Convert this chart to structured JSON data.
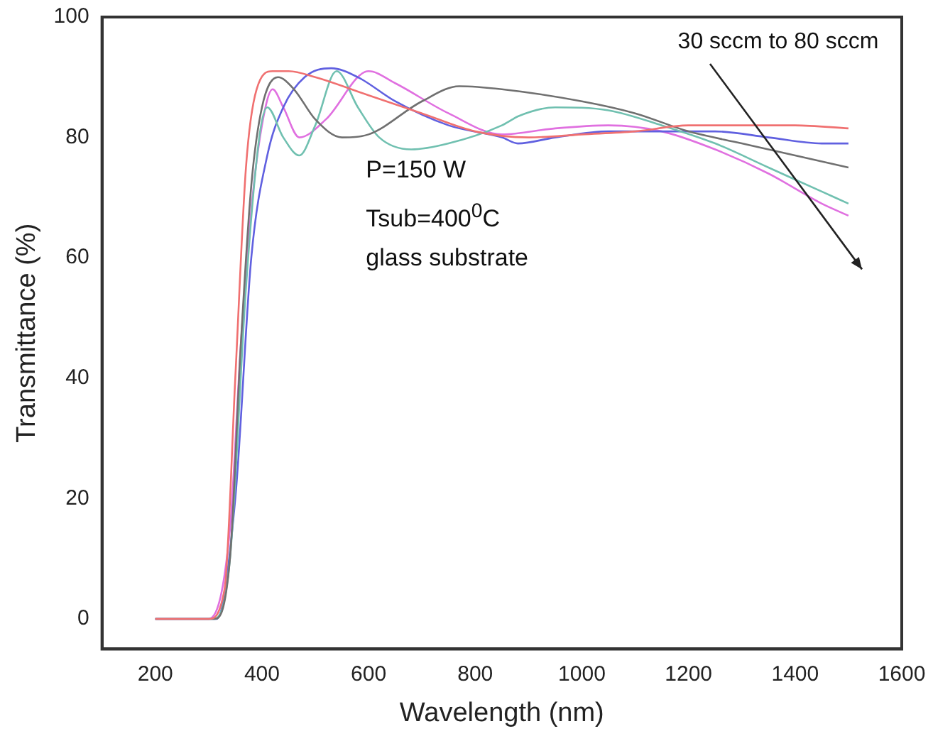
{
  "chart_data": {
    "type": "line",
    "xlabel": "Wavelength (nm)",
    "ylabel": "Transmittance (%)",
    "xlim": [
      100,
      1600
    ],
    "xticks": [
      200,
      400,
      600,
      800,
      1000,
      1200,
      1400,
      1600
    ],
    "ylim": [
      -5,
      100
    ],
    "yticks": [
      0,
      20,
      40,
      60,
      80,
      100
    ],
    "grid": false,
    "legend": false,
    "marker": "none",
    "line_style": "solid",
    "annotations": [
      "P=150 W",
      "Tsub=400$^{0}$C",
      "glass substrate",
      "30 sccm to 80 sccm"
    ],
    "series": [
      {
        "color": "#f07070",
        "x": [
          200,
          300,
          330,
          350,
          370,
          390,
          420,
          450,
          500,
          600,
          700,
          800,
          900,
          1000,
          1100,
          1200,
          1300,
          1400,
          1500
        ],
        "values": [
          0,
          0,
          5,
          40,
          75,
          88,
          91,
          91,
          90,
          87,
          84,
          81,
          80,
          80.5,
          81,
          82,
          82,
          82,
          81.5
        ]
      },
      {
        "color": "#707070",
        "x": [
          200,
          310,
          340,
          360,
          380,
          400,
          430,
          460,
          500,
          550,
          600,
          700,
          770,
          850,
          1000,
          1100,
          1200,
          1300,
          1400,
          1500
        ],
        "values": [
          0,
          0,
          10,
          45,
          72,
          85,
          90,
          88,
          83,
          80,
          80.5,
          86,
          88.5,
          88,
          86,
          84,
          81,
          79,
          77,
          75
        ]
      },
      {
        "color": "#70c0b0",
        "x": [
          200,
          310,
          340,
          370,
          395,
          410,
          440,
          470,
          500,
          540,
          580,
          620,
          680,
          750,
          850,
          870,
          880,
          950,
          1050,
          1150,
          1250,
          1350,
          1450,
          1500
        ],
        "values": [
          0,
          0,
          10,
          55,
          80,
          85,
          80,
          77,
          82,
          91,
          85,
          80,
          78,
          79,
          82,
          83,
          83.5,
          85,
          84.5,
          82,
          79,
          75,
          71,
          69
        ]
      },
      {
        "color": "#6060e0",
        "x": [
          200,
          315,
          350,
          380,
          410,
          440,
          480,
          530,
          580,
          650,
          750,
          850,
          880,
          950,
          1050,
          1150,
          1250,
          1350,
          1450,
          1500
        ],
        "values": [
          0,
          0,
          20,
          60,
          77,
          85,
          90,
          91.5,
          90,
          86,
          82,
          80,
          79,
          80,
          81,
          81,
          81,
          80,
          79,
          79
        ]
      },
      {
        "color": "#e070e0",
        "x": [
          200,
          300,
          340,
          360,
          380,
          400,
          420,
          440,
          470,
          520,
          600,
          650,
          750,
          850,
          950,
          1050,
          1150,
          1250,
          1350,
          1450,
          1500
        ],
        "values": [
          0,
          0,
          15,
          45,
          68,
          82,
          88,
          85,
          80,
          83,
          91,
          89,
          84,
          80.5,
          81.5,
          82,
          81,
          78,
          74,
          69,
          67
        ]
      }
    ]
  }
}
